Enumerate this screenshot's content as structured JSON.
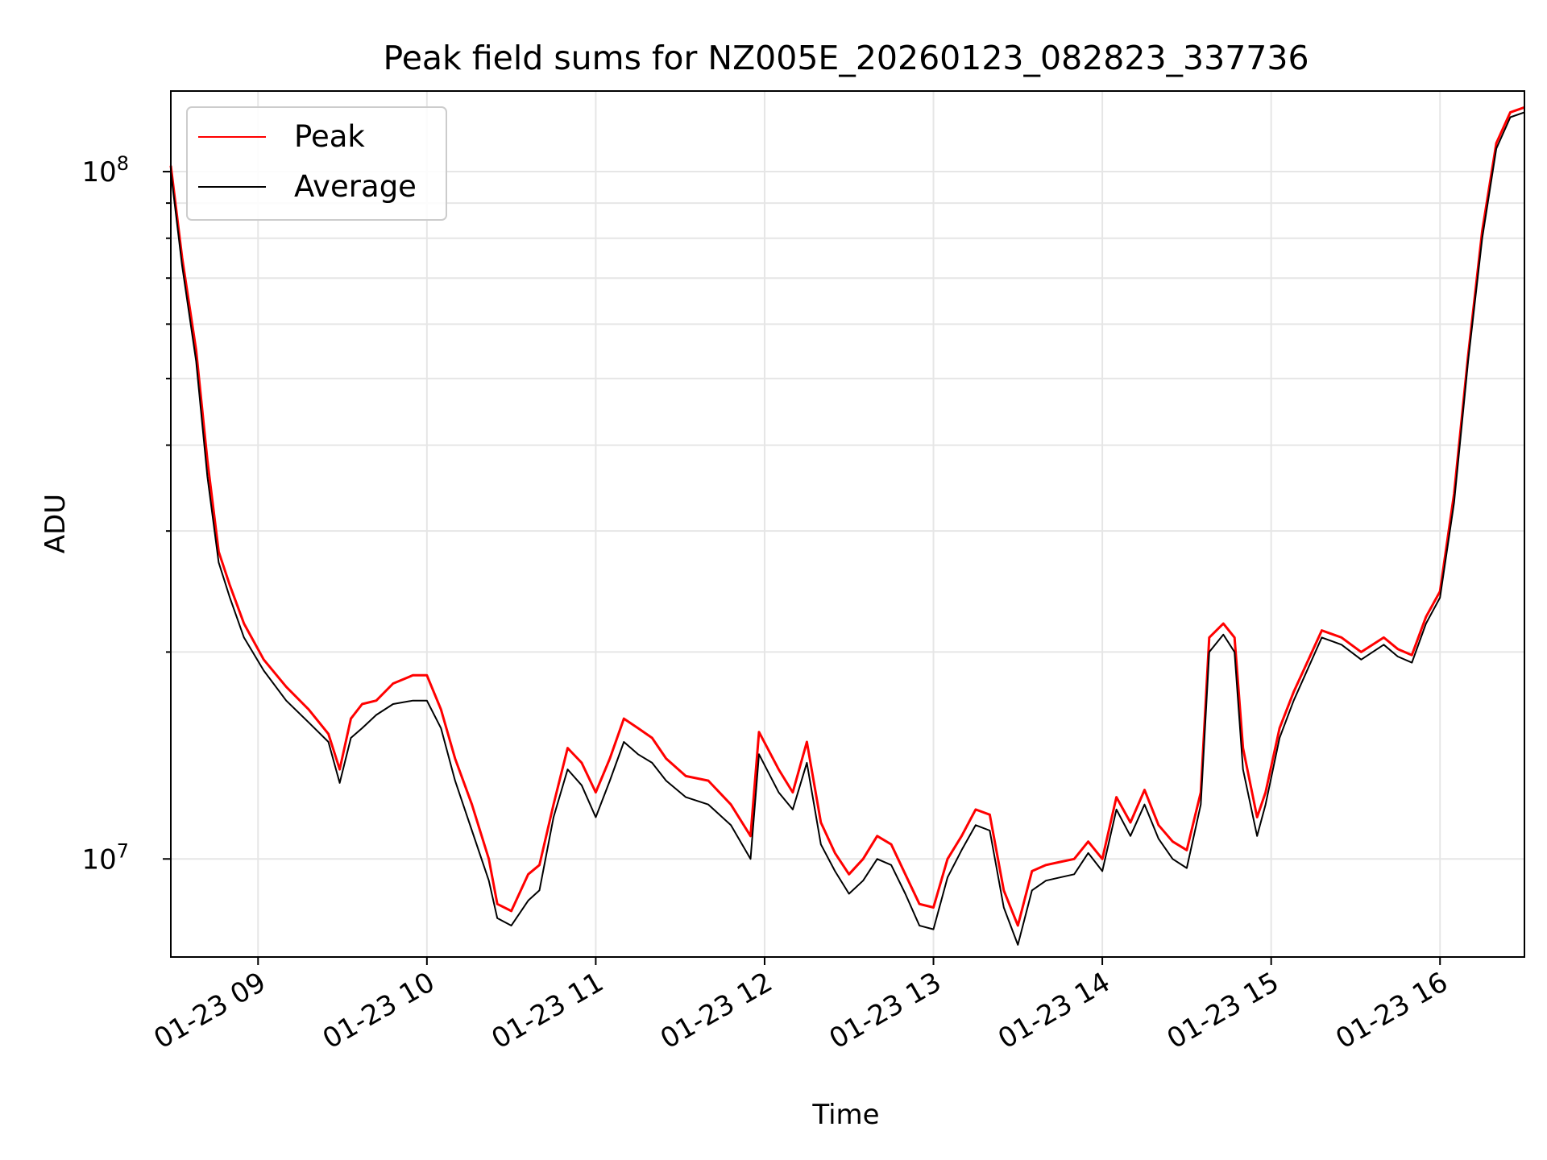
{
  "chart_data": {
    "type": "line",
    "title": "Peak field sums for NZ005E_20260123_082823_337736",
    "xlabel": "Time",
    "ylabel": "ADU",
    "yscale": "log",
    "xlim": [
      "01-23 08:29",
      "01-23 16:30"
    ],
    "ylim": [
      7200000,
      131000000
    ],
    "x_ticks": [
      "01-23 09",
      "01-23 10",
      "01-23 11",
      "01-23 12",
      "01-23 13",
      "01-23 14",
      "01-23 15",
      "01-23 16"
    ],
    "y_ticks": [
      "10^8",
      "10^7"
    ],
    "grid": true,
    "legend_position": "upper-left",
    "series": [
      {
        "name": "Peak",
        "color": "#ff0000",
        "x": [
          "01-23 08:29",
          "01-23 08:33",
          "01-23 08:38",
          "01-23 08:42",
          "01-23 08:46",
          "01-23 08:50",
          "01-23 08:55",
          "01-23 09:02",
          "01-23 09:10",
          "01-23 09:18",
          "01-23 09:25",
          "01-23 09:29",
          "01-23 09:33",
          "01-23 09:37",
          "01-23 09:42",
          "01-23 09:48",
          "01-23 09:55",
          "01-23 10:00",
          "01-23 10:05",
          "01-23 10:10",
          "01-23 10:16",
          "01-23 10:22",
          "01-23 10:25",
          "01-23 10:30",
          "01-23 10:36",
          "01-23 10:40",
          "01-23 10:45",
          "01-23 10:50",
          "01-23 10:55",
          "01-23 11:00",
          "01-23 11:05",
          "01-23 11:10",
          "01-23 11:15",
          "01-23 11:20",
          "01-23 11:25",
          "01-23 11:32",
          "01-23 11:40",
          "01-23 11:48",
          "01-23 11:55",
          "01-23 11:58",
          "01-23 12:05",
          "01-23 12:10",
          "01-23 12:15",
          "01-23 12:20",
          "01-23 12:25",
          "01-23 12:30",
          "01-23 12:35",
          "01-23 12:40",
          "01-23 12:45",
          "01-23 12:50",
          "01-23 12:55",
          "01-23 13:00",
          "01-23 13:05",
          "01-23 13:10",
          "01-23 13:15",
          "01-23 13:20",
          "01-23 13:25",
          "01-23 13:30",
          "01-23 13:35",
          "01-23 13:40",
          "01-23 13:45",
          "01-23 13:50",
          "01-23 13:55",
          "01-23 14:00",
          "01-23 14:05",
          "01-23 14:10",
          "01-23 14:15",
          "01-23 14:20",
          "01-23 14:25",
          "01-23 14:30",
          "01-23 14:35",
          "01-23 14:38",
          "01-23 14:43",
          "01-23 14:47",
          "01-23 14:50",
          "01-23 14:55",
          "01-23 14:58",
          "01-23 15:03",
          "01-23 15:08",
          "01-23 15:12",
          "01-23 15:18",
          "01-23 15:25",
          "01-23 15:32",
          "01-23 15:40",
          "01-23 15:45",
          "01-23 15:50",
          "01-23 15:55",
          "01-23 16:00",
          "01-23 16:05",
          "01-23 16:10",
          "01-23 16:15",
          "01-23 16:20",
          "01-23 16:25",
          "01-23 16:30"
        ],
        "values": [
          102000000,
          75000000,
          55000000,
          38000000,
          28000000,
          25000000,
          22000000,
          19500000,
          17800000,
          16500000,
          15200000,
          13500000,
          16000000,
          16800000,
          17000000,
          18000000,
          18500000,
          18500000,
          16500000,
          14000000,
          12000000,
          10000000,
          8600000,
          8400000,
          9500000,
          9800000,
          12000000,
          14500000,
          13800000,
          12500000,
          14000000,
          16000000,
          15500000,
          15000000,
          14000000,
          13200000,
          13000000,
          12000000,
          10800000,
          15300000,
          13500000,
          12500000,
          14800000,
          11300000,
          10200000,
          9500000,
          10000000,
          10800000,
          10500000,
          9500000,
          8600000,
          8500000,
          10000000,
          10800000,
          11800000,
          11600000,
          9000000,
          8000000,
          9600000,
          9800000,
          9900000,
          10000000,
          10600000,
          10000000,
          12300000,
          11300000,
          12600000,
          11200000,
          10600000,
          10300000,
          12500000,
          21000000,
          22000000,
          21000000,
          14500000,
          11500000,
          12500000,
          15500000,
          17500000,
          19000000,
          21500000,
          21000000,
          20000000,
          21000000,
          20200000,
          19800000,
          22500000,
          24500000,
          34000000,
          54000000,
          82000000,
          110000000,
          122000000,
          124000000
        ]
      },
      {
        "name": "Average",
        "color": "#000000",
        "x": [
          "01-23 08:29",
          "01-23 08:33",
          "01-23 08:38",
          "01-23 08:42",
          "01-23 08:46",
          "01-23 08:50",
          "01-23 08:55",
          "01-23 09:02",
          "01-23 09:10",
          "01-23 09:18",
          "01-23 09:25",
          "01-23 09:29",
          "01-23 09:33",
          "01-23 09:37",
          "01-23 09:42",
          "01-23 09:48",
          "01-23 09:55",
          "01-23 10:00",
          "01-23 10:05",
          "01-23 10:10",
          "01-23 10:16",
          "01-23 10:22",
          "01-23 10:25",
          "01-23 10:30",
          "01-23 10:36",
          "01-23 10:40",
          "01-23 10:45",
          "01-23 10:50",
          "01-23 10:55",
          "01-23 11:00",
          "01-23 11:05",
          "01-23 11:10",
          "01-23 11:15",
          "01-23 11:20",
          "01-23 11:25",
          "01-23 11:32",
          "01-23 11:40",
          "01-23 11:48",
          "01-23 11:55",
          "01-23 11:58",
          "01-23 12:05",
          "01-23 12:10",
          "01-23 12:15",
          "01-23 12:20",
          "01-23 12:25",
          "01-23 12:30",
          "01-23 12:35",
          "01-23 12:40",
          "01-23 12:45",
          "01-23 12:50",
          "01-23 12:55",
          "01-23 13:00",
          "01-23 13:05",
          "01-23 13:10",
          "01-23 13:15",
          "01-23 13:20",
          "01-23 13:25",
          "01-23 13:30",
          "01-23 13:35",
          "01-23 13:40",
          "01-23 13:45",
          "01-23 13:50",
          "01-23 13:55",
          "01-23 14:00",
          "01-23 14:05",
          "01-23 14:10",
          "01-23 14:15",
          "01-23 14:20",
          "01-23 14:25",
          "01-23 14:30",
          "01-23 14:35",
          "01-23 14:38",
          "01-23 14:43",
          "01-23 14:47",
          "01-23 14:50",
          "01-23 14:55",
          "01-23 14:58",
          "01-23 15:03",
          "01-23 15:08",
          "01-23 15:12",
          "01-23 15:18",
          "01-23 15:25",
          "01-23 15:32",
          "01-23 15:40",
          "01-23 15:45",
          "01-23 15:50",
          "01-23 15:55",
          "01-23 16:00",
          "01-23 16:05",
          "01-23 16:10",
          "01-23 16:15",
          "01-23 16:20",
          "01-23 16:25",
          "01-23 16:30"
        ],
        "values": [
          100000000,
          73000000,
          53000000,
          36000000,
          27000000,
          24000000,
          21000000,
          18800000,
          17000000,
          15800000,
          14800000,
          12900000,
          15000000,
          15500000,
          16200000,
          16800000,
          17000000,
          17000000,
          15500000,
          13000000,
          11000000,
          9300000,
          8200000,
          8000000,
          8700000,
          9000000,
          11500000,
          13500000,
          12800000,
          11500000,
          13000000,
          14800000,
          14200000,
          13800000,
          13000000,
          12300000,
          12000000,
          11200000,
          10000000,
          14200000,
          12500000,
          11800000,
          13800000,
          10500000,
          9600000,
          8900000,
          9300000,
          10000000,
          9800000,
          8900000,
          8000000,
          7900000,
          9400000,
          10300000,
          11200000,
          11000000,
          8500000,
          7500000,
          9000000,
          9300000,
          9400000,
          9500000,
          10200000,
          9600000,
          11800000,
          10800000,
          12000000,
          10700000,
          10000000,
          9700000,
          12000000,
          20000000,
          21200000,
          20000000,
          13500000,
          10800000,
          12000000,
          15000000,
          17000000,
          18500000,
          21000000,
          20500000,
          19500000,
          20500000,
          19700000,
          19300000,
          22000000,
          24000000,
          33000000,
          53000000,
          80000000,
          108000000,
          120000000,
          122000000
        ]
      }
    ]
  }
}
